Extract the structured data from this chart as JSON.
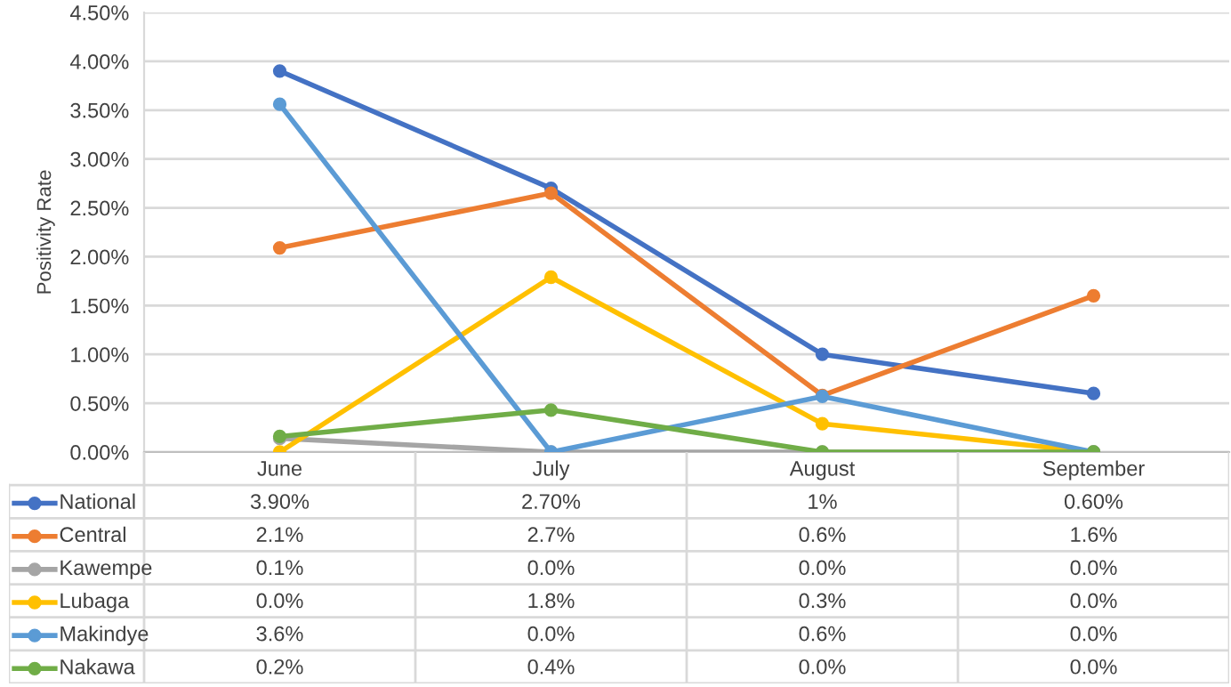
{
  "chart_data": {
    "type": "line",
    "ylabel": "Positivity Rate",
    "categories": [
      "June",
      "July",
      "August",
      "September"
    ],
    "series": [
      {
        "name": "National",
        "color": "#4472c4",
        "values": [
          3.9,
          2.7,
          1.0,
          0.6
        ],
        "value_labels": [
          "3.90%",
          "2.70%",
          "1%",
          "0.60%"
        ]
      },
      {
        "name": "Central",
        "color": "#ed7d31",
        "values": [
          2.09,
          2.65,
          0.58,
          1.6
        ],
        "value_labels": [
          "2.1%",
          "2.7%",
          "0.6%",
          "1.6%"
        ]
      },
      {
        "name": "Kawempe",
        "color": "#a5a5a5",
        "values": [
          0.14,
          0.0,
          0.0,
          0.0
        ],
        "value_labels": [
          "0.1%",
          "0.0%",
          "0.0%",
          "0.0%"
        ]
      },
      {
        "name": "Lubaga",
        "color": "#ffc000",
        "values": [
          0.0,
          1.79,
          0.29,
          0.0
        ],
        "value_labels": [
          "0.0%",
          "1.8%",
          "0.3%",
          "0.0%"
        ]
      },
      {
        "name": "Makindye",
        "color": "#5b9bd5",
        "values": [
          3.56,
          0.0,
          0.57,
          0.0
        ],
        "value_labels": [
          "3.6%",
          "0.0%",
          "0.6%",
          "0.0%"
        ]
      },
      {
        "name": "Nakawa",
        "color": "#70ad47",
        "values": [
          0.16,
          0.43,
          0.0,
          0.0
        ],
        "value_labels": [
          "0.2%",
          "0.4%",
          "0.0%",
          "0.0%"
        ]
      }
    ],
    "ylim": [
      0,
      4.5
    ],
    "yticks": [
      {
        "value": 0,
        "label": "0.00%"
      },
      {
        "value": 0.5,
        "label": "0.50%"
      },
      {
        "value": 1.0,
        "label": "1.00%"
      },
      {
        "value": 1.5,
        "label": "1.50%"
      },
      {
        "value": 2.0,
        "label": "2.00%"
      },
      {
        "value": 2.5,
        "label": "2.50%"
      },
      {
        "value": 3.0,
        "label": "3.00%"
      },
      {
        "value": 3.5,
        "label": "3.50%"
      },
      {
        "value": 4.0,
        "label": "4.00%"
      },
      {
        "value": 4.5,
        "label": "4.50%"
      }
    ],
    "grid": "y",
    "legend": "bottom",
    "marker": "circle",
    "line_style": "solid"
  }
}
